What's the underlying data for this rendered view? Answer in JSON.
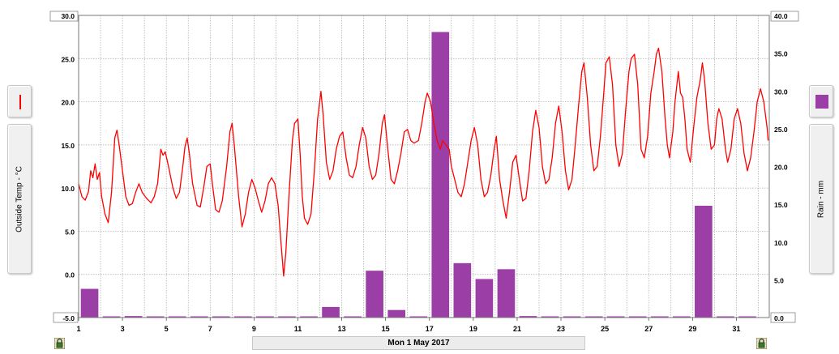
{
  "chart_data": {
    "type": "line+bar",
    "x_label": "Mon 1 May 2017",
    "x_ticks": [
      "1",
      "3",
      "5",
      "7",
      "9",
      "11",
      "13",
      "15",
      "17",
      "19",
      "21",
      "23",
      "25",
      "27",
      "29",
      "31"
    ],
    "left_axis": {
      "label": "Outside Temp - °C",
      "ticks": [
        "30.0",
        "25.0",
        "20.0",
        "15.0",
        "10.0",
        "5.0",
        "0.0",
        "-5.0"
      ],
      "range": [
        -5,
        30
      ]
    },
    "right_axis": {
      "label": "Rain - mm",
      "ticks": [
        "40.0",
        "35.0",
        "30.0",
        "25.0",
        "20.0",
        "15.0",
        "10.0",
        "5.0",
        "0.0"
      ],
      "range": [
        0,
        40
      ]
    },
    "grid": true,
    "series": [
      {
        "name": "Outside Temp - °C",
        "kind": "line",
        "axis": "left",
        "color": "#ff0000",
        "points": [
          [
            1.0,
            10.5
          ],
          [
            1.15,
            9.0
          ],
          [
            1.3,
            8.6
          ],
          [
            1.45,
            9.6
          ],
          [
            1.55,
            12.0
          ],
          [
            1.65,
            11.2
          ],
          [
            1.75,
            12.8
          ],
          [
            1.85,
            11.0
          ],
          [
            1.95,
            11.8
          ],
          [
            2.05,
            9.0
          ],
          [
            2.2,
            7.0
          ],
          [
            2.35,
            6.0
          ],
          [
            2.5,
            9.5
          ],
          [
            2.65,
            15.8
          ],
          [
            2.75,
            16.7
          ],
          [
            2.85,
            15.0
          ],
          [
            3.0,
            12.0
          ],
          [
            3.15,
            9.0
          ],
          [
            3.3,
            8.0
          ],
          [
            3.45,
            8.2
          ],
          [
            3.6,
            9.5
          ],
          [
            3.75,
            10.5
          ],
          [
            3.9,
            9.5
          ],
          [
            4.1,
            8.8
          ],
          [
            4.3,
            8.3
          ],
          [
            4.45,
            9.0
          ],
          [
            4.6,
            10.5
          ],
          [
            4.75,
            14.5
          ],
          [
            4.85,
            13.8
          ],
          [
            4.95,
            14.2
          ],
          [
            5.1,
            12.5
          ],
          [
            5.3,
            10.0
          ],
          [
            5.45,
            8.8
          ],
          [
            5.6,
            9.5
          ],
          [
            5.75,
            12.5
          ],
          [
            5.85,
            14.8
          ],
          [
            5.95,
            15.8
          ],
          [
            6.05,
            14.0
          ],
          [
            6.2,
            10.5
          ],
          [
            6.4,
            8.0
          ],
          [
            6.55,
            7.8
          ],
          [
            6.7,
            10.0
          ],
          [
            6.85,
            12.5
          ],
          [
            7.0,
            12.8
          ],
          [
            7.1,
            10.5
          ],
          [
            7.25,
            7.5
          ],
          [
            7.4,
            7.2
          ],
          [
            7.55,
            8.5
          ],
          [
            7.75,
            12.5
          ],
          [
            7.9,
            16.5
          ],
          [
            8.0,
            17.5
          ],
          [
            8.1,
            15.0
          ],
          [
            8.3,
            9.0
          ],
          [
            8.45,
            5.5
          ],
          [
            8.6,
            7.0
          ],
          [
            8.75,
            9.5
          ],
          [
            8.9,
            11.0
          ],
          [
            9.05,
            10.0
          ],
          [
            9.2,
            8.5
          ],
          [
            9.35,
            7.2
          ],
          [
            9.5,
            8.5
          ],
          [
            9.65,
            10.5
          ],
          [
            9.8,
            11.2
          ],
          [
            9.95,
            10.5
          ],
          [
            10.1,
            8.0
          ],
          [
            10.25,
            3.0
          ],
          [
            10.35,
            -0.2
          ],
          [
            10.45,
            2.5
          ],
          [
            10.6,
            9.5
          ],
          [
            10.75,
            15.5
          ],
          [
            10.85,
            17.5
          ],
          [
            11.0,
            18.0
          ],
          [
            11.1,
            14.0
          ],
          [
            11.2,
            9.0
          ],
          [
            11.3,
            6.5
          ],
          [
            11.45,
            5.8
          ],
          [
            11.6,
            7.0
          ],
          [
            11.75,
            12.0
          ],
          [
            11.9,
            18.0
          ],
          [
            12.05,
            21.2
          ],
          [
            12.15,
            18.5
          ],
          [
            12.3,
            13.0
          ],
          [
            12.45,
            11.0
          ],
          [
            12.6,
            12.0
          ],
          [
            12.75,
            14.5
          ],
          [
            12.9,
            16.0
          ],
          [
            13.05,
            16.5
          ],
          [
            13.2,
            13.5
          ],
          [
            13.35,
            11.5
          ],
          [
            13.5,
            11.2
          ],
          [
            13.65,
            12.5
          ],
          [
            13.8,
            15.0
          ],
          [
            13.95,
            17.0
          ],
          [
            14.1,
            15.8
          ],
          [
            14.25,
            12.5
          ],
          [
            14.4,
            11.0
          ],
          [
            14.55,
            11.5
          ],
          [
            14.7,
            14.0
          ],
          [
            14.85,
            17.5
          ],
          [
            14.95,
            18.5
          ],
          [
            15.1,
            14.5
          ],
          [
            15.25,
            11.0
          ],
          [
            15.4,
            10.5
          ],
          [
            15.55,
            12.0
          ],
          [
            15.7,
            14.0
          ],
          [
            15.85,
            16.5
          ],
          [
            16.0,
            16.8
          ],
          [
            16.15,
            15.5
          ],
          [
            16.3,
            15.2
          ],
          [
            16.5,
            15.5
          ],
          [
            16.65,
            17.5
          ],
          [
            16.8,
            20.0
          ],
          [
            16.9,
            21.0
          ],
          [
            17.05,
            20.0
          ],
          [
            17.2,
            17.5
          ],
          [
            17.35,
            15.5
          ],
          [
            17.5,
            14.5
          ],
          [
            17.6,
            15.5
          ],
          [
            17.75,
            15.0
          ],
          [
            17.9,
            14.5
          ],
          [
            18.0,
            12.5
          ],
          [
            18.15,
            11.0
          ],
          [
            18.3,
            9.5
          ],
          [
            18.45,
            9.0
          ],
          [
            18.6,
            10.5
          ],
          [
            18.75,
            13.0
          ],
          [
            18.9,
            15.5
          ],
          [
            19.05,
            17.0
          ],
          [
            19.2,
            15.0
          ],
          [
            19.35,
            11.0
          ],
          [
            19.5,
            9.0
          ],
          [
            19.65,
            9.5
          ],
          [
            19.8,
            11.5
          ],
          [
            19.95,
            14.5
          ],
          [
            20.05,
            16.0
          ],
          [
            20.2,
            11.0
          ],
          [
            20.35,
            8.5
          ],
          [
            20.5,
            6.5
          ],
          [
            20.65,
            9.5
          ],
          [
            20.8,
            13.0
          ],
          [
            20.95,
            13.8
          ],
          [
            21.1,
            11.0
          ],
          [
            21.25,
            8.5
          ],
          [
            21.4,
            8.8
          ],
          [
            21.55,
            12.0
          ],
          [
            21.7,
            16.5
          ],
          [
            21.85,
            19.0
          ],
          [
            22.0,
            17.0
          ],
          [
            22.15,
            12.5
          ],
          [
            22.3,
            10.5
          ],
          [
            22.45,
            11.0
          ],
          [
            22.6,
            13.5
          ],
          [
            22.75,
            17.5
          ],
          [
            22.9,
            19.5
          ],
          [
            23.05,
            16.5
          ],
          [
            23.2,
            12.0
          ],
          [
            23.35,
            9.8
          ],
          [
            23.5,
            11.0
          ],
          [
            23.65,
            15.0
          ],
          [
            23.8,
            19.5
          ],
          [
            23.95,
            23.5
          ],
          [
            24.05,
            24.5
          ],
          [
            24.2,
            20.5
          ],
          [
            24.35,
            15.0
          ],
          [
            24.5,
            12.0
          ],
          [
            24.65,
            12.5
          ],
          [
            24.8,
            16.0
          ],
          [
            24.95,
            21.0
          ],
          [
            25.05,
            24.5
          ],
          [
            25.2,
            25.2
          ],
          [
            25.35,
            22.0
          ],
          [
            25.5,
            15.0
          ],
          [
            25.65,
            12.5
          ],
          [
            25.8,
            14.0
          ],
          [
            25.95,
            19.0
          ],
          [
            26.1,
            23.5
          ],
          [
            26.2,
            25.0
          ],
          [
            26.35,
            25.5
          ],
          [
            26.5,
            22.0
          ],
          [
            26.65,
            14.5
          ],
          [
            26.8,
            13.5
          ],
          [
            26.95,
            16.0
          ],
          [
            27.1,
            21.0
          ],
          [
            27.25,
            23.5
          ],
          [
            27.35,
            25.5
          ],
          [
            27.45,
            26.2
          ],
          [
            27.6,
            23.5
          ],
          [
            27.75,
            18.0
          ],
          [
            27.85,
            15.0
          ],
          [
            27.95,
            13.5
          ],
          [
            28.1,
            16.5
          ],
          [
            28.2,
            20.0
          ],
          [
            28.35,
            23.5
          ],
          [
            28.45,
            21.0
          ],
          [
            28.55,
            20.5
          ],
          [
            28.65,
            18.0
          ],
          [
            28.75,
            14.5
          ],
          [
            28.9,
            13.0
          ],
          [
            29.05,
            17.0
          ],
          [
            29.2,
            20.5
          ],
          [
            29.35,
            22.5
          ],
          [
            29.45,
            24.5
          ],
          [
            29.55,
            22.5
          ],
          [
            29.7,
            17.5
          ],
          [
            29.85,
            14.5
          ],
          [
            30.0,
            15.0
          ],
          [
            30.1,
            18.0
          ],
          [
            30.2,
            19.2
          ],
          [
            30.35,
            18.0
          ],
          [
            30.5,
            14.5
          ],
          [
            30.6,
            13.0
          ],
          [
            30.75,
            14.5
          ],
          [
            30.9,
            18.0
          ],
          [
            31.05,
            19.2
          ],
          [
            31.2,
            17.5
          ],
          [
            31.35,
            14.0
          ],
          [
            31.5,
            12.0
          ],
          [
            31.65,
            13.5
          ],
          [
            31.8,
            16.5
          ],
          [
            31.95,
            20.0
          ],
          [
            32.1,
            21.5
          ],
          [
            32.25,
            20.0
          ],
          [
            32.4,
            17.0
          ],
          [
            32.45,
            15.5
          ]
        ]
      },
      {
        "name": "Rain - mm",
        "kind": "bar",
        "axis": "right",
        "color": "#9b3fa6",
        "bar_width_days": 0.8,
        "bars": [
          [
            1.5,
            3.8
          ],
          [
            2.5,
            0.1
          ],
          [
            3.5,
            0.2
          ],
          [
            4.5,
            0.1
          ],
          [
            5.5,
            0.1
          ],
          [
            6.5,
            0.1
          ],
          [
            7.5,
            0.1
          ],
          [
            8.5,
            0.1
          ],
          [
            9.5,
            0.1
          ],
          [
            10.5,
            0.1
          ],
          [
            11.5,
            0.1
          ],
          [
            12.5,
            1.4
          ],
          [
            13.5,
            0.1
          ],
          [
            14.5,
            6.2
          ],
          [
            15.5,
            1.0
          ],
          [
            16.5,
            0.1
          ],
          [
            17.5,
            37.8
          ],
          [
            18.5,
            7.2
          ],
          [
            19.5,
            5.1
          ],
          [
            20.5,
            6.4
          ],
          [
            21.5,
            0.2
          ],
          [
            22.5,
            0.1
          ],
          [
            23.5,
            0.1
          ],
          [
            24.5,
            0.1
          ],
          [
            25.5,
            0.1
          ],
          [
            26.5,
            0.1
          ],
          [
            27.5,
            0.1
          ],
          [
            28.5,
            0.1
          ],
          [
            29.5,
            14.8
          ],
          [
            30.5,
            0.1
          ],
          [
            31.5,
            0.1
          ]
        ]
      }
    ]
  },
  "controls": {
    "left_legend_icon": "red-line-swatch-icon",
    "right_legend_icon": "purple-square-swatch-icon",
    "left_lock_icon": "padlock-icon",
    "right_lock_icon": "padlock-icon"
  }
}
